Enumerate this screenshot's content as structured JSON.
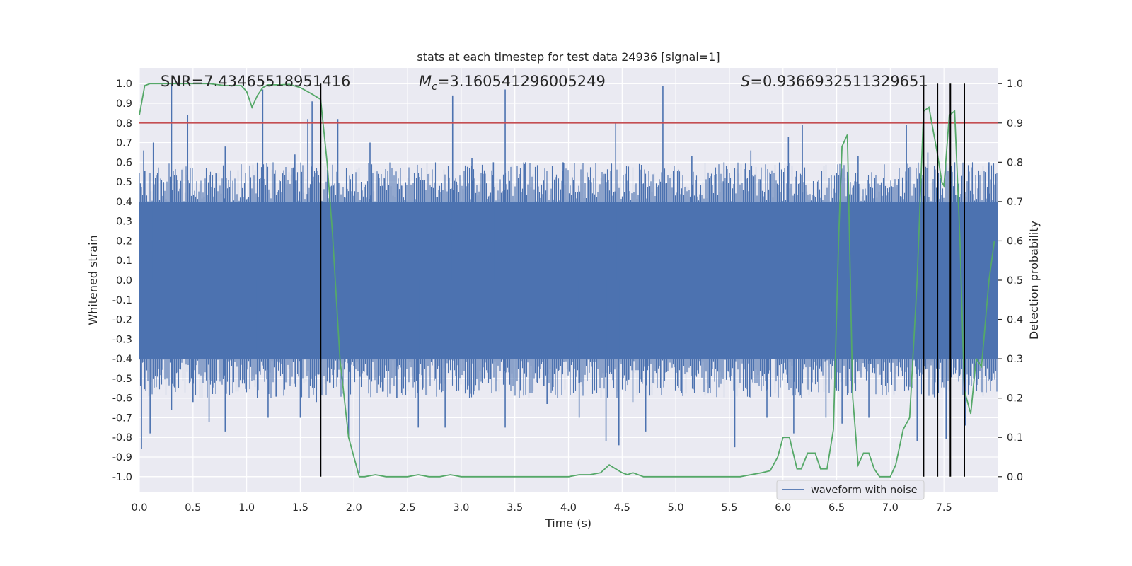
{
  "chart_data": {
    "type": "line",
    "title": "stats at each timestep for test data 24936 [signal=1]",
    "xlabel": "Time (s)",
    "ylabel": "Whitened strain",
    "y2label": "Detection probability",
    "xlim": [
      0,
      8
    ],
    "ylim": [
      -1.08,
      1.08
    ],
    "y2lim": [
      -0.04,
      1.04
    ],
    "x_ticks": [
      "0.0",
      "0.5",
      "1.0",
      "1.5",
      "2.0",
      "2.5",
      "3.0",
      "3.5",
      "4.0",
      "4.5",
      "5.0",
      "5.5",
      "6.0",
      "6.5",
      "7.0",
      "7.5"
    ],
    "y_ticks": [
      "1.0",
      "0.9",
      "0.8",
      "0.7",
      "0.6",
      "0.5",
      "0.4",
      "0.3",
      "0.2",
      "0.1",
      "0.0",
      "-0.1",
      "-0.2",
      "-0.3",
      "-0.4",
      "-0.5",
      "-0.6",
      "-0.7",
      "-0.8",
      "-0.9",
      "-1.0"
    ],
    "y2_ticks": [
      "1.0",
      "0.9",
      "0.8",
      "0.7",
      "0.6",
      "0.5",
      "0.4",
      "0.3",
      "0.2",
      "0.1",
      "0.0"
    ],
    "grid": true,
    "legend": {
      "placement": "lower-right",
      "entries": [
        "waveform with noise"
      ]
    },
    "annotations": {
      "snr": "SNR=7.43465518951416",
      "mc_symbol": "M",
      "mc_sub": "c",
      "mc_value": "=3.160541296005249",
      "s_symbol": "S",
      "s_value": "=0.9366932511329651"
    },
    "threshold": {
      "y": 0.8,
      "color": "#c44e52"
    },
    "vertical_markers": [
      1.69,
      7.31,
      7.44,
      7.56,
      7.69
    ],
    "waveform": {
      "name": "waveform with noise",
      "color": "#4c72b0",
      "band": 0.4,
      "spikes": [
        [
          0.02,
          -0.86
        ],
        [
          0.04,
          0.66
        ],
        [
          0.1,
          -0.78
        ],
        [
          0.13,
          0.7
        ],
        [
          0.3,
          1.0
        ],
        [
          0.3,
          -0.66
        ],
        [
          0.45,
          0.84
        ],
        [
          0.5,
          -0.62
        ],
        [
          0.65,
          -0.72
        ],
        [
          0.8,
          0.68
        ],
        [
          0.8,
          -0.77
        ],
        [
          1.1,
          -0.6
        ],
        [
          1.15,
          0.97
        ],
        [
          1.2,
          -0.7
        ],
        [
          1.45,
          0.64
        ],
        [
          1.5,
          -0.7
        ],
        [
          1.57,
          0.82
        ],
        [
          1.61,
          0.91
        ],
        [
          1.65,
          -0.62
        ],
        [
          1.85,
          0.82
        ],
        [
          1.95,
          -0.8
        ],
        [
          2.05,
          -0.98
        ],
        [
          2.15,
          0.7
        ],
        [
          2.4,
          -0.6
        ],
        [
          2.6,
          -0.75
        ],
        [
          2.85,
          -0.75
        ],
        [
          2.92,
          0.94
        ],
        [
          3.1,
          0.62
        ],
        [
          3.3,
          0.6
        ],
        [
          3.41,
          0.97
        ],
        [
          3.41,
          -0.75
        ],
        [
          3.6,
          0.6
        ],
        [
          3.8,
          -0.63
        ],
        [
          3.95,
          0.6
        ],
        [
          4.1,
          -0.7
        ],
        [
          4.35,
          -0.82
        ],
        [
          4.44,
          0.8
        ],
        [
          4.47,
          -0.84
        ],
        [
          4.6,
          -0.62
        ],
        [
          4.72,
          -0.77
        ],
        [
          4.88,
          0.99
        ],
        [
          5.15,
          0.63
        ],
        [
          5.45,
          0.6
        ],
        [
          5.55,
          -0.85
        ],
        [
          5.7,
          0.66
        ],
        [
          5.85,
          -0.7
        ],
        [
          6.05,
          0.73
        ],
        [
          6.1,
          -0.78
        ],
        [
          6.18,
          0.79
        ],
        [
          6.4,
          -0.7
        ],
        [
          6.55,
          -0.73
        ],
        [
          6.7,
          0.63
        ],
        [
          6.8,
          -0.7
        ],
        [
          7.15,
          0.79
        ],
        [
          7.25,
          -0.82
        ],
        [
          7.35,
          0.65
        ],
        [
          7.52,
          -0.81
        ],
        [
          7.6,
          0.6
        ],
        [
          7.7,
          -0.74
        ],
        [
          7.92,
          0.6
        ]
      ]
    },
    "detection_probability": {
      "color": "#55a868",
      "x": [
        0.0,
        0.05,
        0.1,
        0.15,
        0.25,
        0.35,
        0.5,
        0.65,
        0.8,
        0.95,
        1.0,
        1.05,
        1.1,
        1.15,
        1.2,
        1.3,
        1.4,
        1.5,
        1.6,
        1.66,
        1.69,
        1.75,
        1.8,
        1.87,
        1.95,
        2.0,
        2.05,
        2.1,
        2.2,
        2.3,
        2.4,
        2.5,
        2.6,
        2.7,
        2.8,
        2.9,
        3.0,
        3.1,
        3.2,
        3.3,
        3.4,
        3.5,
        3.6,
        3.7,
        3.8,
        3.9,
        4.0,
        4.1,
        4.2,
        4.3,
        4.38,
        4.44,
        4.5,
        4.55,
        4.6,
        4.7,
        4.75,
        4.8,
        4.9,
        5.0,
        5.2,
        5.4,
        5.6,
        5.7,
        5.8,
        5.88,
        5.95,
        6.0,
        6.06,
        6.13,
        6.17,
        6.23,
        6.3,
        6.35,
        6.41,
        6.47,
        6.52,
        6.55,
        6.6,
        6.65,
        6.7,
        6.75,
        6.8,
        6.85,
        6.9,
        6.95,
        7.0,
        7.05,
        7.12,
        7.18,
        7.25,
        7.31,
        7.36,
        7.44,
        7.48,
        7.5,
        7.55,
        7.6,
        7.65,
        7.69,
        7.75,
        7.8,
        7.85,
        7.92,
        7.97
      ],
      "y": [
        0.92,
        0.995,
        1.0,
        1.0,
        1.0,
        1.0,
        1.0,
        1.0,
        0.995,
        0.995,
        0.98,
        0.94,
        0.97,
        0.99,
        0.997,
        0.997,
        0.998,
        0.99,
        0.975,
        0.965,
        0.96,
        0.8,
        0.62,
        0.3,
        0.1,
        0.05,
        0.0,
        0.0,
        0.005,
        0.0,
        0.0,
        0.0,
        0.005,
        0.0,
        0.0,
        0.005,
        0.0,
        0.0,
        0.0,
        0.0,
        0.0,
        0.0,
        0.0,
        0.0,
        0.0,
        0.0,
        0.0,
        0.005,
        0.005,
        0.01,
        0.03,
        0.02,
        0.01,
        0.005,
        0.01,
        0.0,
        0.0,
        0.0,
        0.0,
        0.0,
        0.0,
        0.0,
        0.0,
        0.005,
        0.01,
        0.015,
        0.05,
        0.1,
        0.1,
        0.02,
        0.02,
        0.06,
        0.06,
        0.02,
        0.02,
        0.12,
        0.62,
        0.84,
        0.87,
        0.2,
        0.03,
        0.06,
        0.06,
        0.02,
        0.0,
        0.0,
        0.0,
        0.03,
        0.12,
        0.15,
        0.5,
        0.93,
        0.94,
        0.82,
        0.75,
        0.74,
        0.92,
        0.93,
        0.6,
        0.22,
        0.16,
        0.3,
        0.28,
        0.5,
        0.6
      ]
    }
  }
}
